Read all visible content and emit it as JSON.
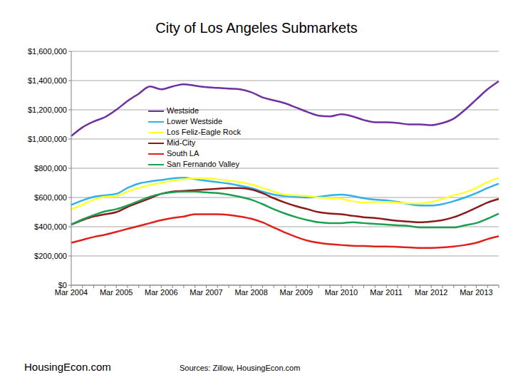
{
  "chart_data": {
    "type": "line",
    "title": "City of Los Angeles Submarkets",
    "logo": "HousingEcon.com",
    "source": "Sources: Zillow, HousingEcon.com",
    "categories": [
      "Mar 2004",
      null,
      null,
      null,
      "Mar 2005",
      null,
      null,
      null,
      "Mar 2006",
      null,
      null,
      null,
      "Mar 2007",
      null,
      null,
      null,
      "Mar 2008",
      null,
      null,
      null,
      "Mar 2009",
      null,
      null,
      null,
      "Mar 2010",
      null,
      null,
      null,
      "Mar 2011",
      null,
      null,
      null,
      "Mar 2012",
      null,
      null,
      null,
      "Mar 2013",
      null,
      null
    ],
    "ylim": [
      0,
      1600000
    ],
    "yticks": [
      {
        "value": 0,
        "label": "$0"
      },
      {
        "value": 200000,
        "label": "$200,000"
      },
      {
        "value": 400000,
        "label": "$400,000"
      },
      {
        "value": 600000,
        "label": "$600,000"
      },
      {
        "value": 800000,
        "label": "$800,000"
      },
      {
        "value": 1000000,
        "label": "$1,000,000"
      },
      {
        "value": 1200000,
        "label": "$1,200,000"
      },
      {
        "value": 1400000,
        "label": "$1,400,000"
      },
      {
        "value": 1600000,
        "label": "$1,600,000"
      }
    ],
    "grid": true,
    "legend": "top",
    "series": [
      {
        "name": "Westside",
        "color": "#7030a0",
        "values": [
          1020000,
          1080000,
          1120000,
          1150000,
          1200000,
          1260000,
          1310000,
          1360000,
          1340000,
          1360000,
          1375000,
          1365000,
          1355000,
          1350000,
          1345000,
          1340000,
          1320000,
          1285000,
          1265000,
          1245000,
          1215000,
          1185000,
          1160000,
          1155000,
          1170000,
          1155000,
          1130000,
          1115000,
          1115000,
          1110000,
          1100000,
          1100000,
          1095000,
          1110000,
          1140000,
          1200000,
          1270000,
          1340000,
          1395000
        ]
      },
      {
        "name": "Lower Westside",
        "color": "#2eb2e8",
        "values": [
          550000,
          580000,
          605000,
          615000,
          625000,
          665000,
          695000,
          710000,
          720000,
          730000,
          735000,
          725000,
          715000,
          705000,
          695000,
          680000,
          665000,
          640000,
          620000,
          610000,
          605000,
          600000,
          605000,
          615000,
          620000,
          610000,
          595000,
          585000,
          580000,
          570000,
          555000,
          545000,
          545000,
          555000,
          575000,
          600000,
          630000,
          665000,
          695000
        ]
      },
      {
        "name": "Los Feliz-Eagle Rock",
        "color": "#ffff33",
        "values": [
          520000,
          550000,
          585000,
          605000,
          610000,
          640000,
          665000,
          685000,
          700000,
          715000,
          725000,
          730000,
          730000,
          725000,
          715000,
          705000,
          690000,
          665000,
          640000,
          620000,
          615000,
          610000,
          600000,
          595000,
          590000,
          575000,
          565000,
          570000,
          570000,
          565000,
          560000,
          560000,
          570000,
          590000,
          615000,
          635000,
          665000,
          705000,
          735000
        ]
      },
      {
        "name": "Mid-City",
        "color": "#8b1a1a",
        "values": [
          415000,
          445000,
          470000,
          485000,
          500000,
          535000,
          565000,
          595000,
          625000,
          640000,
          645000,
          650000,
          655000,
          660000,
          665000,
          665000,
          655000,
          630000,
          595000,
          565000,
          540000,
          520000,
          500000,
          490000,
          485000,
          475000,
          465000,
          460000,
          450000,
          440000,
          435000,
          430000,
          435000,
          445000,
          465000,
          495000,
          530000,
          565000,
          590000
        ]
      },
      {
        "name": "South LA",
        "color": "#e0201b",
        "values": [
          290000,
          310000,
          330000,
          345000,
          365000,
          385000,
          405000,
          425000,
          445000,
          460000,
          470000,
          485000,
          485000,
          485000,
          480000,
          470000,
          455000,
          430000,
          395000,
          360000,
          330000,
          305000,
          290000,
          280000,
          275000,
          270000,
          268000,
          265000,
          265000,
          262000,
          258000,
          255000,
          255000,
          258000,
          265000,
          275000,
          290000,
          315000,
          335000
        ]
      },
      {
        "name": "San Fernando Valley",
        "color": "#1aa050",
        "values": [
          415000,
          450000,
          480000,
          505000,
          520000,
          545000,
          575000,
          605000,
          625000,
          635000,
          640000,
          640000,
          635000,
          630000,
          620000,
          605000,
          585000,
          555000,
          520000,
          490000,
          465000,
          445000,
          430000,
          425000,
          425000,
          430000,
          425000,
          420000,
          415000,
          410000,
          405000,
          395000,
          395000,
          395000,
          395000,
          410000,
          425000,
          455000,
          490000
        ]
      }
    ]
  }
}
